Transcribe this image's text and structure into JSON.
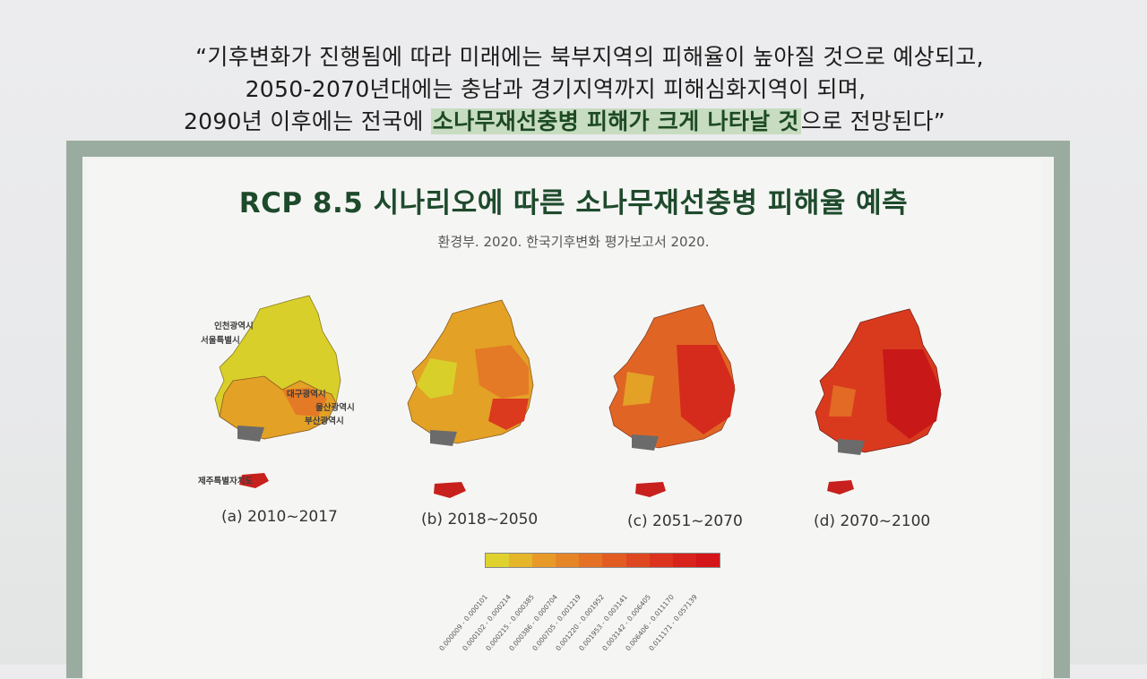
{
  "quote": {
    "line1": "“기후변화가 진행됨에 따라 미래에는 북부지역의 피해율이 높아질 것으로 예상되고,",
    "line2": "2050-2070년대에는 충남과 경기지역까지 피해심화지역이 되며,",
    "line3_pre": "2090년 이후에는 전국에 ",
    "line3_highlight": "소나무재선충병 피해가 크게 나타날 것",
    "line3_post": "으로 전망된다”"
  },
  "figure": {
    "title": "RCP 8.5 시나리오에 따른 소나무재선충병 피해율 예측",
    "source": "환경부. 2020. 한국기후변화 평가보고서 2020.",
    "panels": [
      {
        "label": "(a) 2010~2017",
        "dominant": "low"
      },
      {
        "label": "(b) 2018~2050",
        "dominant": "mid"
      },
      {
        "label": "(c) 2051~2070",
        "dominant": "high"
      },
      {
        "label": "(d) 2070~2100",
        "dominant": "very-high"
      }
    ],
    "place_labels": [
      {
        "text": "인천광역시"
      },
      {
        "text": "서울특별시"
      },
      {
        "text": "대구광역시"
      },
      {
        "text": "울산광역시"
      },
      {
        "text": "부산광역시"
      },
      {
        "text": "제주특별자치도"
      }
    ],
    "legend": {
      "colors": [
        "#e0d22e",
        "#e5b52a",
        "#e79a28",
        "#e68526",
        "#e57124",
        "#e25c22",
        "#df4720",
        "#dc331e",
        "#d8231c",
        "#d4161a"
      ],
      "labels": [
        "0.000009 - 0.000101",
        "0.000102 - 0.000214",
        "0.000215 - 0.000385",
        "0.000386 - 0.000704",
        "0.000705 - 0.001219",
        "0.001220 - 0.001952",
        "0.001953 - 0.003141",
        "0.003142 - 0.006405",
        "0.006406 - 0.011170",
        "0.011171 - 0.057139"
      ]
    }
  }
}
